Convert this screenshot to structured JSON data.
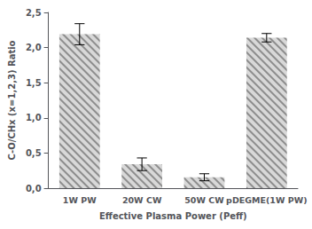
{
  "chart_data": {
    "type": "bar",
    "categories": [
      "1W PW",
      "20W CW",
      "50W CW",
      "pDEGME(1W PW)"
    ],
    "values": [
      2.19,
      0.34,
      0.155,
      2.14
    ],
    "errors": [
      0.15,
      0.09,
      0.05,
      0.06
    ],
    "color": "#d8d8d8",
    "xlabel": "Effective Plasma Power (Peff)",
    "ylabel": "C-O/CHx (x=1,2,3) Ratio",
    "ylim": [
      0,
      2.5
    ],
    "yticks": [
      {
        "value": 0.0,
        "label": "0,0"
      },
      {
        "value": 0.5,
        "label": "0,5"
      },
      {
        "value": 1.0,
        "label": "1,0"
      },
      {
        "value": 1.5,
        "label": "1,5"
      },
      {
        "value": 2.0,
        "label": "2,0"
      },
      {
        "value": 2.5,
        "label": "2,5"
      }
    ],
    "grid": false
  }
}
